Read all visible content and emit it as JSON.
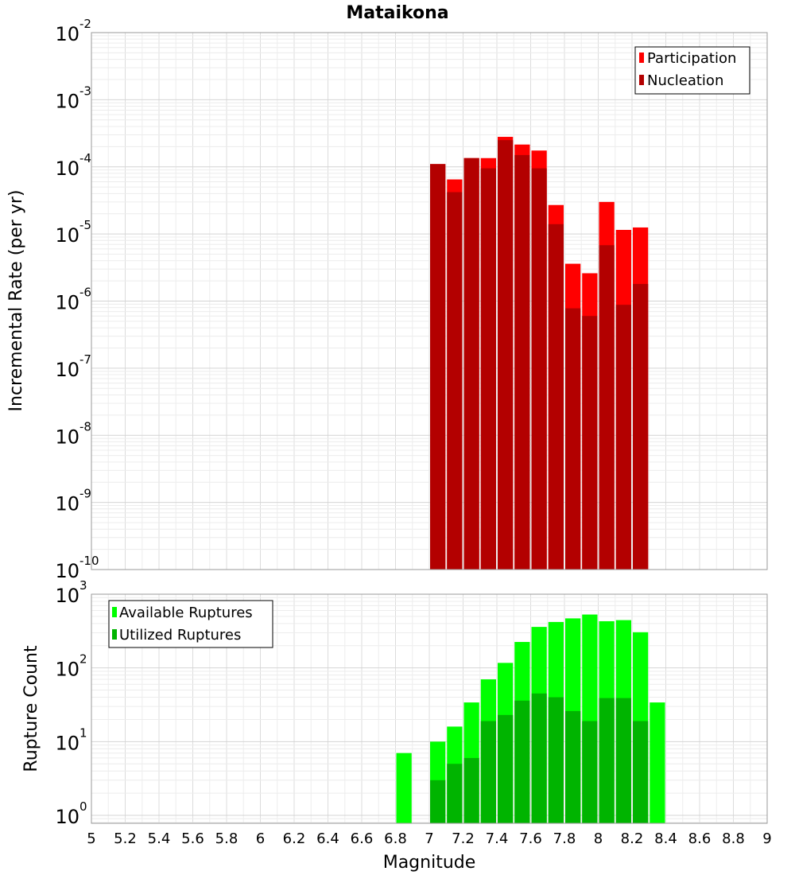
{
  "chart_data": [
    {
      "type": "bar",
      "title": "Mataikona",
      "xlabel": "",
      "ylabel": "Incremental Rate (per yr)",
      "yscale": "log",
      "xlim": [
        5,
        9
      ],
      "ylim": [
        1e-10,
        0.01
      ],
      "grid": true,
      "legend_position": "top-right",
      "bar_width": 0.1,
      "y_ticks": [
        {
          "base": "10",
          "exp": "-10"
        },
        {
          "base": "10",
          "exp": "-9"
        },
        {
          "base": "10",
          "exp": "-8"
        },
        {
          "base": "10",
          "exp": "-7"
        },
        {
          "base": "10",
          "exp": "-6"
        },
        {
          "base": "10",
          "exp": "-5"
        },
        {
          "base": "10",
          "exp": "-4"
        },
        {
          "base": "10",
          "exp": "-3"
        },
        {
          "base": "10",
          "exp": "-2"
        }
      ],
      "x": [
        7.05,
        7.15,
        7.25,
        7.35,
        7.45,
        7.55,
        7.65,
        7.75,
        7.85,
        7.95,
        8.05,
        8.15,
        8.25
      ],
      "series": [
        {
          "name": "Participation",
          "color": "#ff0000",
          "values": [
            0.00011,
            6.5e-05,
            0.000135,
            0.000135,
            0.00028,
            0.000215,
            0.000175,
            2.7e-05,
            3.6e-06,
            2.6e-06,
            3e-05,
            1.15e-05,
            1.25e-05
          ]
        },
        {
          "name": "Nucleation",
          "color": "#b30000",
          "values": [
            0.00011,
            4.2e-05,
            0.000135,
            9.5e-05,
            0.00025,
            0.00015,
            9.5e-05,
            1.4e-05,
            7.8e-07,
            6e-07,
            6.8e-06,
            8.8e-07,
            1.8e-06
          ]
        }
      ]
    },
    {
      "type": "bar",
      "xlabel": "Magnitude",
      "ylabel": "Rupture Count",
      "yscale": "log",
      "xlim": [
        5,
        9
      ],
      "ylim": [
        0.78,
        1000
      ],
      "grid": true,
      "legend_position": "top-left",
      "bar_width": 0.1,
      "x_ticks": [
        "5",
        "5.2",
        "5.4",
        "5.6",
        "5.8",
        "6",
        "6.2",
        "6.4",
        "6.6",
        "6.8",
        "7",
        "7.2",
        "7.4",
        "7.6",
        "7.8",
        "8",
        "8.2",
        "8.4",
        "8.6",
        "8.8",
        "9"
      ],
      "y_ticks": [
        {
          "base": "10",
          "exp": "0"
        },
        {
          "base": "10",
          "exp": "1"
        },
        {
          "base": "10",
          "exp": "2"
        },
        {
          "base": "10",
          "exp": "3"
        }
      ],
      "x": [
        6.85,
        7.05,
        7.15,
        7.25,
        7.35,
        7.45,
        7.55,
        7.65,
        7.75,
        7.85,
        7.95,
        8.05,
        8.15,
        8.25,
        8.35
      ],
      "series": [
        {
          "name": "Available Ruptures",
          "color": "#00ff00",
          "values": [
            7,
            10,
            16,
            34,
            70,
            117,
            225,
            360,
            420,
            470,
            530,
            430,
            445,
            305,
            34
          ]
        },
        {
          "name": "Utilized Ruptures",
          "color": "#00b400",
          "values": [
            0,
            3,
            5,
            6,
            19,
            23,
            36,
            45,
            40,
            26,
            19,
            39,
            39,
            19,
            0
          ]
        }
      ]
    }
  ]
}
